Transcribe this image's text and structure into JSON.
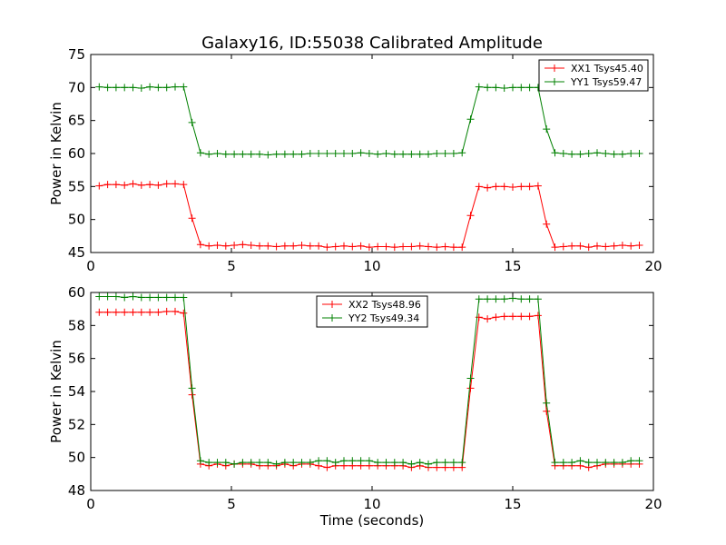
{
  "title": "Galaxy16, ID:55038 Calibrated Amplitude",
  "chart_data": [
    {
      "type": "line",
      "ylabel": "Power in Kelvin",
      "xlabel": "",
      "xlim": [
        0,
        20
      ],
      "ylim": [
        45,
        75
      ],
      "xticks": [
        0,
        5,
        10,
        15,
        20
      ],
      "yticks": [
        45,
        50,
        55,
        60,
        65,
        70,
        75
      ],
      "legend": "top-right",
      "series": [
        {
          "name": "XX1 Tsys45.40",
          "color": "#ff0000",
          "x": [
            0.3,
            0.6,
            0.9,
            1.2,
            1.5,
            1.8,
            2.1,
            2.4,
            2.7,
            3.0,
            3.3,
            3.6,
            3.9,
            4.2,
            4.5,
            4.8,
            5.1,
            5.4,
            5.7,
            6.0,
            6.3,
            6.6,
            6.9,
            7.2,
            7.5,
            7.8,
            8.1,
            8.4,
            8.7,
            9.0,
            9.3,
            9.6,
            9.9,
            10.2,
            10.5,
            10.8,
            11.1,
            11.4,
            11.7,
            12.0,
            12.3,
            12.6,
            12.9,
            13.2,
            13.5,
            13.8,
            14.1,
            14.4,
            14.7,
            15.0,
            15.3,
            15.6,
            15.9,
            16.2,
            16.5,
            16.8,
            17.1,
            17.4,
            17.7,
            18.0,
            18.3,
            18.6,
            18.9,
            19.2,
            19.5
          ],
          "y": [
            55.1,
            55.3,
            55.3,
            55.2,
            55.4,
            55.2,
            55.3,
            55.2,
            55.4,
            55.4,
            55.3,
            50.2,
            46.2,
            46.0,
            46.1,
            46.0,
            46.1,
            46.2,
            46.1,
            46.0,
            46.0,
            45.9,
            46.0,
            46.0,
            46.1,
            46.0,
            46.0,
            45.8,
            45.9,
            46.0,
            45.9,
            46.0,
            45.8,
            45.9,
            45.9,
            45.8,
            45.9,
            45.9,
            46.0,
            45.9,
            45.8,
            45.9,
            45.8,
            45.8,
            50.6,
            55.0,
            54.8,
            55.0,
            55.0,
            54.9,
            55.0,
            55.0,
            55.1,
            49.3,
            45.8,
            45.9,
            46.0,
            46.0,
            45.8,
            46.0,
            45.9,
            46.0,
            46.1,
            46.0,
            46.1
          ]
        },
        {
          "name": "YY1 Tsys59.47",
          "color": "#008000",
          "x": [
            0.3,
            0.6,
            0.9,
            1.2,
            1.5,
            1.8,
            2.1,
            2.4,
            2.7,
            3.0,
            3.3,
            3.6,
            3.9,
            4.2,
            4.5,
            4.8,
            5.1,
            5.4,
            5.7,
            6.0,
            6.3,
            6.6,
            6.9,
            7.2,
            7.5,
            7.8,
            8.1,
            8.4,
            8.7,
            9.0,
            9.3,
            9.6,
            9.9,
            10.2,
            10.5,
            10.8,
            11.1,
            11.4,
            11.7,
            12.0,
            12.3,
            12.6,
            12.9,
            13.2,
            13.5,
            13.8,
            14.1,
            14.4,
            14.7,
            15.0,
            15.3,
            15.6,
            15.9,
            16.2,
            16.5,
            16.8,
            17.1,
            17.4,
            17.7,
            18.0,
            18.3,
            18.6,
            18.9,
            19.2,
            19.5
          ],
          "y": [
            70.1,
            70.0,
            70.0,
            70.0,
            70.0,
            69.9,
            70.1,
            70.0,
            70.0,
            70.1,
            70.1,
            64.7,
            60.1,
            59.9,
            60.0,
            59.9,
            59.9,
            59.9,
            59.9,
            59.9,
            59.8,
            59.9,
            59.9,
            59.9,
            59.9,
            60.0,
            60.0,
            60.0,
            60.0,
            60.0,
            60.0,
            60.1,
            60.0,
            59.9,
            60.0,
            59.9,
            59.9,
            59.9,
            59.9,
            59.9,
            60.0,
            60.0,
            60.0,
            60.1,
            65.2,
            70.1,
            70.0,
            70.0,
            69.9,
            70.0,
            70.0,
            70.0,
            70.0,
            63.7,
            60.1,
            60.0,
            59.9,
            59.9,
            60.0,
            60.1,
            60.0,
            59.9,
            59.9,
            60.0,
            60.0
          ]
        }
      ]
    },
    {
      "type": "line",
      "ylabel": "Power in Kelvin",
      "xlabel": "Time (seconds)",
      "xlim": [
        0,
        20
      ],
      "ylim": [
        48,
        60
      ],
      "xticks": [
        0,
        5,
        10,
        15,
        20
      ],
      "yticks": [
        48,
        50,
        52,
        54,
        56,
        58,
        60
      ],
      "legend": "top-center",
      "series": [
        {
          "name": "XX2 Tsys48.96",
          "color": "#ff0000",
          "x": [
            0.3,
            0.6,
            0.9,
            1.2,
            1.5,
            1.8,
            2.1,
            2.4,
            2.7,
            3.0,
            3.3,
            3.6,
            3.9,
            4.2,
            4.5,
            4.8,
            5.1,
            5.4,
            5.7,
            6.0,
            6.3,
            6.6,
            6.9,
            7.2,
            7.5,
            7.8,
            8.1,
            8.4,
            8.7,
            9.0,
            9.3,
            9.6,
            9.9,
            10.2,
            10.5,
            10.8,
            11.1,
            11.4,
            11.7,
            12.0,
            12.3,
            12.6,
            12.9,
            13.2,
            13.5,
            13.8,
            14.1,
            14.4,
            14.7,
            15.0,
            15.3,
            15.6,
            15.9,
            16.2,
            16.5,
            16.8,
            17.1,
            17.4,
            17.7,
            18.0,
            18.3,
            18.6,
            18.9,
            19.2,
            19.5
          ],
          "y": [
            58.8,
            58.8,
            58.8,
            58.8,
            58.8,
            58.8,
            58.8,
            58.8,
            58.85,
            58.85,
            58.75,
            53.8,
            49.6,
            49.5,
            49.6,
            49.5,
            49.6,
            49.6,
            49.6,
            49.5,
            49.5,
            49.5,
            49.6,
            49.5,
            49.6,
            49.6,
            49.5,
            49.4,
            49.5,
            49.5,
            49.5,
            49.5,
            49.5,
            49.5,
            49.5,
            49.5,
            49.5,
            49.4,
            49.5,
            49.4,
            49.4,
            49.4,
            49.4,
            49.4,
            54.2,
            58.5,
            58.4,
            58.5,
            58.55,
            58.55,
            58.55,
            58.55,
            58.6,
            52.8,
            49.5,
            49.5,
            49.5,
            49.5,
            49.4,
            49.5,
            49.6,
            49.6,
            49.6,
            49.6,
            49.6
          ]
        },
        {
          "name": "YY2 Tsys49.34",
          "color": "#008000",
          "x": [
            0.3,
            0.6,
            0.9,
            1.2,
            1.5,
            1.8,
            2.1,
            2.4,
            2.7,
            3.0,
            3.3,
            3.6,
            3.9,
            4.2,
            4.5,
            4.8,
            5.1,
            5.4,
            5.7,
            6.0,
            6.3,
            6.6,
            6.9,
            7.2,
            7.5,
            7.8,
            8.1,
            8.4,
            8.7,
            9.0,
            9.3,
            9.6,
            9.9,
            10.2,
            10.5,
            10.8,
            11.1,
            11.4,
            11.7,
            12.0,
            12.3,
            12.6,
            12.9,
            13.2,
            13.5,
            13.8,
            14.1,
            14.4,
            14.7,
            15.0,
            15.3,
            15.6,
            15.9,
            16.2,
            16.5,
            16.8,
            17.1,
            17.4,
            17.7,
            18.0,
            18.3,
            18.6,
            18.9,
            19.2,
            19.5
          ],
          "y": [
            59.75,
            59.75,
            59.75,
            59.7,
            59.75,
            59.7,
            59.7,
            59.7,
            59.7,
            59.7,
            59.7,
            54.2,
            49.8,
            49.7,
            49.7,
            49.7,
            49.6,
            49.7,
            49.7,
            49.7,
            49.7,
            49.6,
            49.7,
            49.7,
            49.7,
            49.7,
            49.8,
            49.8,
            49.7,
            49.8,
            49.8,
            49.8,
            49.8,
            49.7,
            49.7,
            49.7,
            49.7,
            49.6,
            49.7,
            49.6,
            49.7,
            49.7,
            49.7,
            49.7,
            54.8,
            59.6,
            59.6,
            59.6,
            59.6,
            59.65,
            59.6,
            59.6,
            59.6,
            53.3,
            49.7,
            49.7,
            49.7,
            49.8,
            49.7,
            49.7,
            49.7,
            49.7,
            49.7,
            49.8,
            49.8
          ]
        }
      ]
    }
  ]
}
